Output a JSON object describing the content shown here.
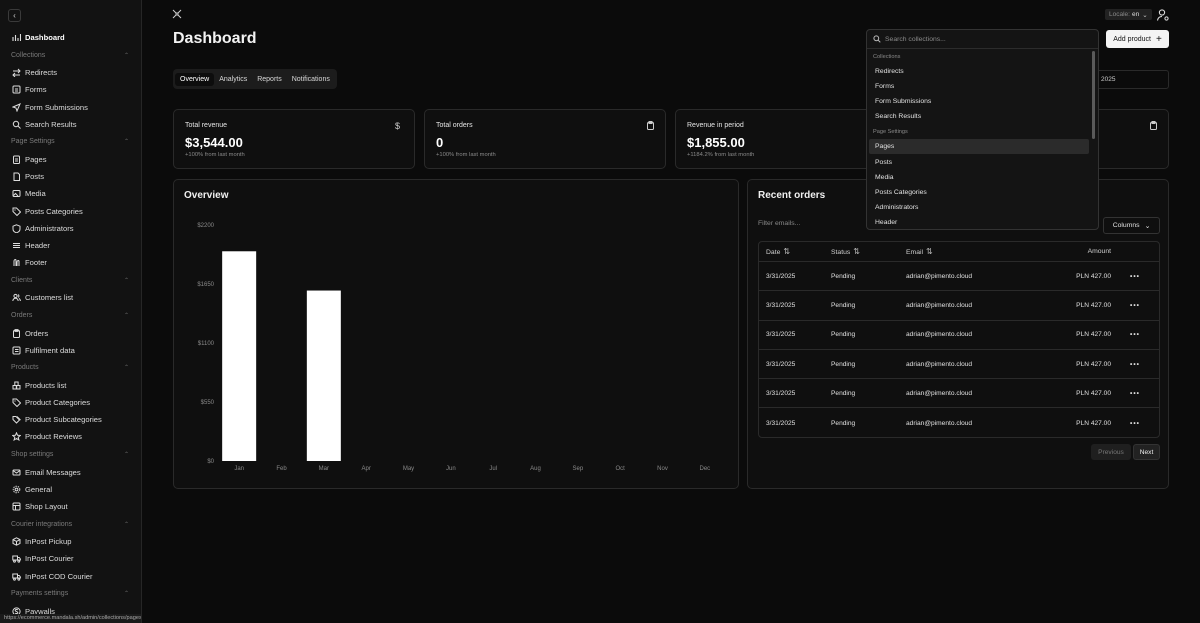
{
  "sidebar": {
    "items": [
      {
        "type": "item",
        "label": "Dashboard",
        "icon": "chart-bar-icon",
        "name": "sidebar-item-dashboard",
        "active": true
      },
      {
        "type": "group",
        "label": "Collections"
      },
      {
        "type": "item",
        "label": "Redirects",
        "icon": "arrows-icon",
        "name": "sidebar-item-redirects"
      },
      {
        "type": "item",
        "label": "Forms",
        "icon": "forms-icon",
        "name": "sidebar-item-forms"
      },
      {
        "type": "item",
        "label": "Form Submissions",
        "icon": "send-icon",
        "name": "sidebar-item-form-submissions"
      },
      {
        "type": "item",
        "label": "Search Results",
        "icon": "search-icon",
        "name": "sidebar-item-search-results"
      },
      {
        "type": "group",
        "label": "Page Settings"
      },
      {
        "type": "item",
        "label": "Pages",
        "icon": "file-icon",
        "name": "sidebar-item-pages"
      },
      {
        "type": "item",
        "label": "Posts",
        "icon": "post-icon",
        "name": "sidebar-item-posts"
      },
      {
        "type": "item",
        "label": "Media",
        "icon": "image-icon",
        "name": "sidebar-item-media"
      },
      {
        "type": "item",
        "label": "Posts Categories",
        "icon": "tag-icon",
        "name": "sidebar-item-posts-categories"
      },
      {
        "type": "item",
        "label": "Administrators",
        "icon": "user-shield-icon",
        "name": "sidebar-item-administrators"
      },
      {
        "type": "item",
        "label": "Header",
        "icon": "menu-icon",
        "name": "sidebar-item-header"
      },
      {
        "type": "item",
        "label": "Footer",
        "icon": "footer-icon",
        "name": "sidebar-item-footer"
      },
      {
        "type": "group",
        "label": "Clients"
      },
      {
        "type": "item",
        "label": "Customers list",
        "icon": "users-icon",
        "name": "sidebar-item-customers-list"
      },
      {
        "type": "group",
        "label": "Orders"
      },
      {
        "type": "item",
        "label": "Orders",
        "icon": "clipboard-icon",
        "name": "sidebar-item-orders"
      },
      {
        "type": "item",
        "label": "Fulfilment data",
        "icon": "list-icon",
        "name": "sidebar-item-fulfilment-data"
      },
      {
        "type": "group",
        "label": "Products"
      },
      {
        "type": "item",
        "label": "Products list",
        "icon": "boxes-icon",
        "name": "sidebar-item-products-list"
      },
      {
        "type": "item",
        "label": "Product Categories",
        "icon": "tag-icon",
        "name": "sidebar-item-product-categories"
      },
      {
        "type": "item",
        "label": "Product Subcategories",
        "icon": "tags-icon",
        "name": "sidebar-item-product-subcategories"
      },
      {
        "type": "item",
        "label": "Product Reviews",
        "icon": "star-icon",
        "name": "sidebar-item-product-reviews"
      },
      {
        "type": "group",
        "label": "Shop settings"
      },
      {
        "type": "item",
        "label": "Email Messages",
        "icon": "mail-icon",
        "name": "sidebar-item-email-messages"
      },
      {
        "type": "item",
        "label": "General",
        "icon": "gear-icon",
        "name": "sidebar-item-general"
      },
      {
        "type": "item",
        "label": "Shop Layout",
        "icon": "layout-icon",
        "name": "sidebar-item-shop-layout"
      },
      {
        "type": "group",
        "label": "Courier integrations"
      },
      {
        "type": "item",
        "label": "InPost Pickup",
        "icon": "package-icon",
        "name": "sidebar-item-inpost-pickup"
      },
      {
        "type": "item",
        "label": "InPost Courier",
        "icon": "truck-icon",
        "name": "sidebar-item-inpost-courier"
      },
      {
        "type": "item",
        "label": "InPost COD Courier",
        "icon": "truck-icon",
        "name": "sidebar-item-inpost-cod-courier"
      },
      {
        "type": "group",
        "label": "Payments settings"
      },
      {
        "type": "item",
        "label": "Paywalls",
        "icon": "dollar-circle-icon",
        "name": "sidebar-item-paywalls"
      }
    ]
  },
  "status_url": "https://ecommerce.mandala.sh/admin/collections/pages",
  "header": {
    "title": "Dashboard",
    "locale_label": "Locale:",
    "locale_value": "en",
    "add_product": "Add product",
    "date_text": "2025"
  },
  "tabs": [
    "Overview",
    "Analytics",
    "Reports",
    "Notifications"
  ],
  "stats": [
    {
      "label": "Total revenue",
      "value": "$3,544.00",
      "sub": "+100% from last month",
      "icon": "dollar-icon"
    },
    {
      "label": "Total orders",
      "value": "0",
      "sub": "+100% from last month",
      "icon": "clipboard-icon"
    },
    {
      "label": "Revenue in period",
      "value": "$1,855.00",
      "sub": "+1184.2% from last month",
      "icon": "clipboard-icon"
    }
  ],
  "overview": {
    "title": "Overview"
  },
  "chart_data": {
    "type": "bar",
    "title": "",
    "xlabel": "",
    "ylabel": "",
    "categories": [
      "Jan",
      "Feb",
      "Mar",
      "Apr",
      "May",
      "Jun",
      "Jul",
      "Aug",
      "Sep",
      "Oct",
      "Nov",
      "Dec"
    ],
    "values": [
      1955,
      0,
      1589,
      0,
      0,
      0,
      0,
      0,
      0,
      0,
      0,
      0
    ],
    "yticks": [
      "$0",
      "$550",
      "$1100",
      "$1650",
      "$2200"
    ],
    "ylim": [
      0,
      2200
    ],
    "grid": false
  },
  "orders": {
    "title": "Recent orders",
    "filter_placeholder": "Filter emails...",
    "columns_label": "Columns",
    "headers": {
      "date": "Date",
      "status": "Status",
      "email": "Email",
      "amount": "Amount"
    },
    "rows": [
      {
        "date": "3/31/2025",
        "status": "Pending",
        "email": "adrian@pimento.cloud",
        "amount": "PLN 427.00"
      },
      {
        "date": "3/31/2025",
        "status": "Pending",
        "email": "adrian@pimento.cloud",
        "amount": "PLN 427.00"
      },
      {
        "date": "3/31/2025",
        "status": "Pending",
        "email": "adrian@pimento.cloud",
        "amount": "PLN 427.00"
      },
      {
        "date": "3/31/2025",
        "status": "Pending",
        "email": "adrian@pimento.cloud",
        "amount": "PLN 427.00"
      },
      {
        "date": "3/31/2025",
        "status": "Pending",
        "email": "adrian@pimento.cloud",
        "amount": "PLN 427.00"
      },
      {
        "date": "3/31/2025",
        "status": "Pending",
        "email": "adrian@pimento.cloud",
        "amount": "PLN 427.00"
      }
    ],
    "more_glyph": "•••",
    "previous": "Previous",
    "next": "Next"
  },
  "dropdown": {
    "placeholder": "Search collections...",
    "groups": [
      {
        "label": "Collections",
        "items": [
          "Redirects",
          "Forms",
          "Form Submissions",
          "Search Results"
        ]
      },
      {
        "label": "Page Settings",
        "items": [
          "Pages",
          "Posts",
          "Media",
          "Posts Categories",
          "Administrators",
          "Header"
        ]
      }
    ],
    "highlighted": "Pages"
  }
}
